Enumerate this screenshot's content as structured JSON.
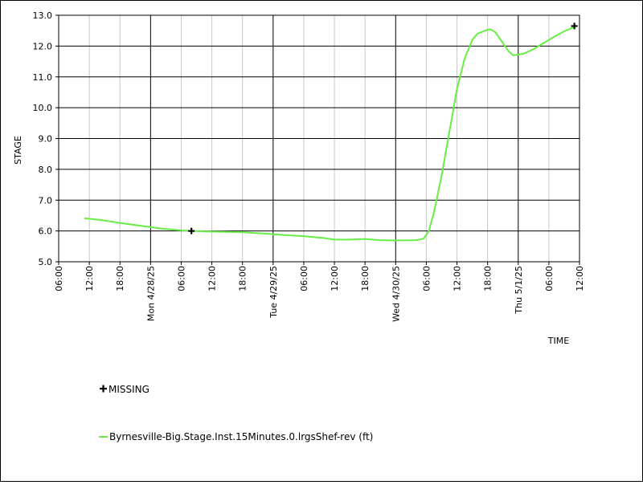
{
  "chart_data": {
    "type": "line",
    "xlabel": "TIME",
    "ylabel": "STAGE",
    "ylim": [
      5.0,
      13.0
    ],
    "yticks": [
      "5.0",
      "6.0",
      "7.0",
      "8.0",
      "9.0",
      "10.0",
      "11.0",
      "12.0",
      "13.0"
    ],
    "xlim": [
      "2025-04-27T06:00",
      "2025-05-01T12:00"
    ],
    "xticks": [
      {
        "t": "2025-04-27T06:00",
        "label": "06:00"
      },
      {
        "t": "2025-04-27T12:00",
        "label": "12:00"
      },
      {
        "t": "2025-04-27T18:00",
        "label": "18:00"
      },
      {
        "t": "2025-04-28T00:00",
        "label": "Mon 4/28/25",
        "major": true
      },
      {
        "t": "2025-04-28T06:00",
        "label": "06:00"
      },
      {
        "t": "2025-04-28T12:00",
        "label": "12:00"
      },
      {
        "t": "2025-04-28T18:00",
        "label": "18:00"
      },
      {
        "t": "2025-04-29T00:00",
        "label": "Tue 4/29/25",
        "major": true
      },
      {
        "t": "2025-04-29T06:00",
        "label": "06:00"
      },
      {
        "t": "2025-04-29T12:00",
        "label": "12:00"
      },
      {
        "t": "2025-04-29T18:00",
        "label": "18:00"
      },
      {
        "t": "2025-04-30T00:00",
        "label": "Wed 4/30/25",
        "major": true
      },
      {
        "t": "2025-04-30T06:00",
        "label": "06:00"
      },
      {
        "t": "2025-04-30T12:00",
        "label": "12:00"
      },
      {
        "t": "2025-04-30T18:00",
        "label": "18:00"
      },
      {
        "t": "2025-05-01T00:00",
        "label": "Thu 5/1/25",
        "major": true
      },
      {
        "t": "2025-05-01T06:00",
        "label": "06:00"
      },
      {
        "t": "2025-05-01T12:00",
        "label": "12:00"
      }
    ],
    "grid": true,
    "legend_placement": "bottom-left",
    "series": [
      {
        "name": "Byrnesville-Big.Stage.Inst.15Minutes.0.lrgsShef-rev (ft)",
        "color": "#66ee44",
        "points": [
          [
            "2025-04-27T11:00",
            6.41
          ],
          [
            "2025-04-27T14:00",
            6.36
          ],
          [
            "2025-04-27T18:00",
            6.26
          ],
          [
            "2025-04-27T22:00",
            6.17
          ],
          [
            "2025-04-28T02:00",
            6.08
          ],
          [
            "2025-04-28T06:00",
            6.02
          ],
          [
            "2025-04-28T08:00",
            6.0
          ],
          [
            "2025-04-28T12:00",
            5.98
          ],
          [
            "2025-04-28T18:00",
            5.96
          ],
          [
            "2025-04-28T22:00",
            5.92
          ],
          [
            "2025-04-29T02:00",
            5.87
          ],
          [
            "2025-04-29T06:00",
            5.83
          ],
          [
            "2025-04-29T10:00",
            5.77
          ],
          [
            "2025-04-29T12:00",
            5.72
          ],
          [
            "2025-04-29T15:00",
            5.72
          ],
          [
            "2025-04-29T18:00",
            5.74
          ],
          [
            "2025-04-29T21:00",
            5.7
          ],
          [
            "2025-04-30T00:00",
            5.69
          ],
          [
            "2025-04-30T04:00",
            5.7
          ],
          [
            "2025-04-30T05:30",
            5.75
          ],
          [
            "2025-04-30T06:30",
            6.0
          ],
          [
            "2025-04-30T07:30",
            6.6
          ],
          [
            "2025-04-30T09:00",
            7.8
          ],
          [
            "2025-04-30T10:30",
            9.2
          ],
          [
            "2025-04-30T12:00",
            10.6
          ],
          [
            "2025-04-30T13:30",
            11.6
          ],
          [
            "2025-04-30T15:00",
            12.2
          ],
          [
            "2025-04-30T16:00",
            12.4
          ],
          [
            "2025-04-30T17:30",
            12.5
          ],
          [
            "2025-04-30T18:30",
            12.55
          ],
          [
            "2025-04-30T19:30",
            12.45
          ],
          [
            "2025-04-30T21:00",
            12.1
          ],
          [
            "2025-04-30T22:00",
            11.85
          ],
          [
            "2025-04-30T23:00",
            11.7
          ],
          [
            "2025-05-01T01:00",
            11.75
          ],
          [
            "2025-05-01T03:00",
            11.9
          ],
          [
            "2025-05-01T05:00",
            12.1
          ],
          [
            "2025-05-01T07:00",
            12.3
          ],
          [
            "2025-05-01T09:00",
            12.48
          ],
          [
            "2025-05-01T11:00",
            12.62
          ]
        ]
      }
    ],
    "missing": {
      "label": "MISSING",
      "points": [
        [
          "2025-04-28T08:00",
          6.0
        ],
        [
          "2025-05-01T11:00",
          12.65
        ]
      ]
    }
  }
}
